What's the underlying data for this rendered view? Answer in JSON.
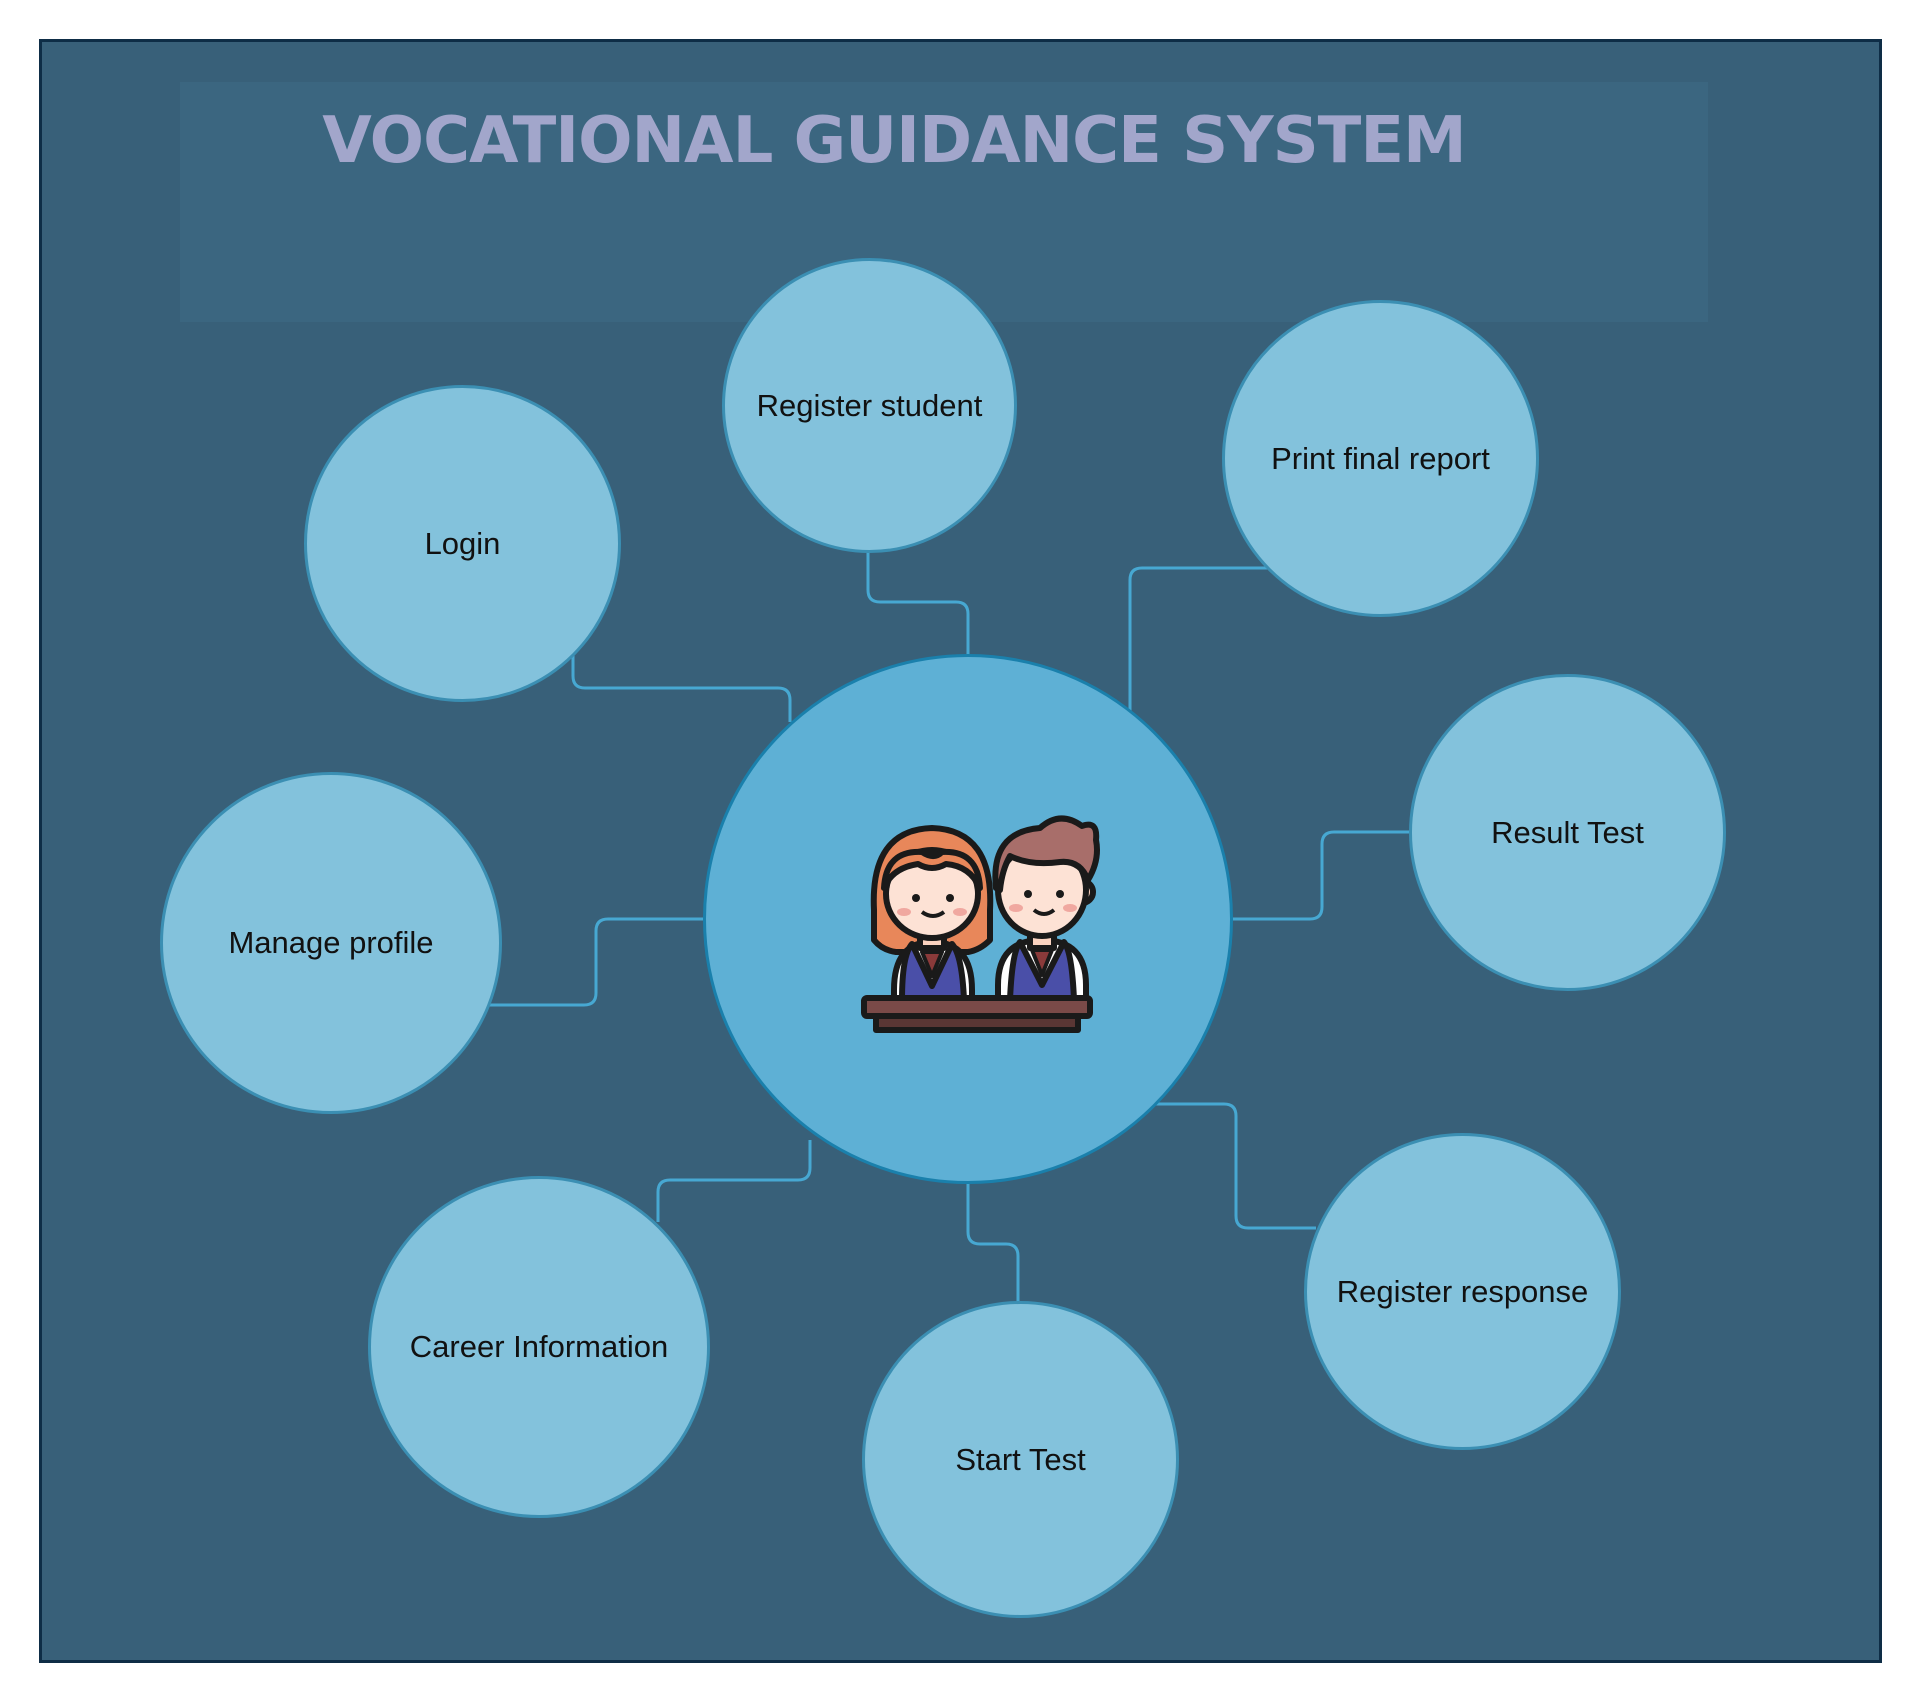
{
  "title": "VOCATIONAL GUIDANCE SYSTEM",
  "colors": {
    "background": "#386079",
    "frame_border": "#0e2d46",
    "title_text": "#a2a6cb",
    "node_fill": "#83c2dc",
    "node_stroke": "#3b8fb3",
    "hub_fill": "#5eb0d5",
    "connector": "#47a8d2"
  },
  "hub": {
    "icon": "students-at-desk-icon"
  },
  "nodes": {
    "login": "Login",
    "register_student": "Register student",
    "print_final_report": "Print final report",
    "manage_profile": "Manage profile",
    "result_test": "Result Test",
    "career_information": "Career Information",
    "start_test": "Start Test",
    "register_response": "Register response"
  }
}
